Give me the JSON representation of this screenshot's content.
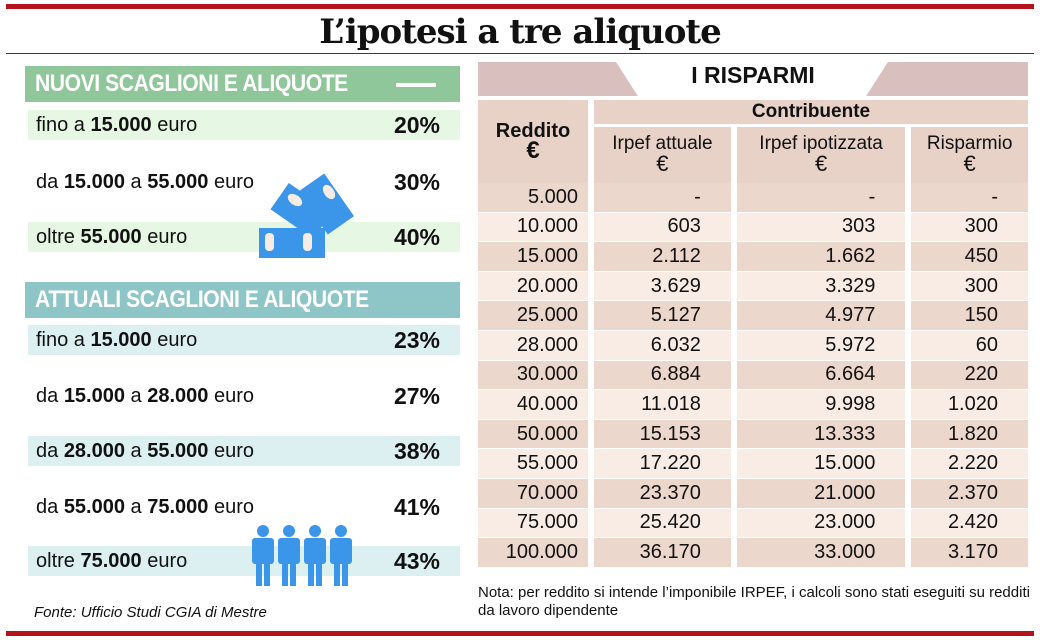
{
  "title": "L’ipotesi a tre aliquote",
  "new_brackets": {
    "heading": "NUOVI SCAGLIONI E ALIQUOTE",
    "rows": [
      {
        "pre": "fino a ",
        "a": "15.000",
        "mid": "",
        "b": "",
        "post": " euro",
        "pct": "20%"
      },
      {
        "pre": "da ",
        "a": "15.000",
        "mid": " a ",
        "b": "55.000",
        "post": " euro",
        "pct": "30%"
      },
      {
        "pre": "oltre ",
        "a": "55.000",
        "mid": "",
        "b": "",
        "post": " euro",
        "pct": "40%"
      }
    ]
  },
  "current_brackets": {
    "heading": "ATTUALI SCAGLIONI E ALIQUOTE",
    "rows": [
      {
        "pre": "fino a ",
        "a": "15.000",
        "mid": "",
        "b": "",
        "post": " euro",
        "pct": "23%"
      },
      {
        "pre": "da ",
        "a": "15.000",
        "mid": " a ",
        "b": "28.000",
        "post": " euro",
        "pct": "27%"
      },
      {
        "pre": "da ",
        "a": "28.000",
        "mid": " a ",
        "b": "55.000",
        "post": " euro",
        "pct": "38%"
      },
      {
        "pre": "da ",
        "a": "55.000",
        "mid": " a ",
        "b": "75.000",
        "post": " euro",
        "pct": "41%"
      },
      {
        "pre": "oltre ",
        "a": "75.000",
        "mid": "",
        "b": "",
        "post": " euro",
        "pct": "43%"
      }
    ]
  },
  "source": "Fonte: Ufficio Studi CGIA di Mestre",
  "chart_data": {
    "type": "table",
    "title": "I RISPARMI",
    "group_header": "Contribuente",
    "columns": [
      {
        "name": "Reddito",
        "unit": "€"
      },
      {
        "name": "Irpef attuale",
        "unit": "€"
      },
      {
        "name": "Irpef ipotizzata",
        "unit": "€"
      },
      {
        "name": "Risparmio",
        "unit": "€"
      }
    ],
    "rows": [
      [
        "5.000",
        "-",
        "-",
        "-"
      ],
      [
        "10.000",
        "603",
        "303",
        "300"
      ],
      [
        "15.000",
        "2.112",
        "1.662",
        "450"
      ],
      [
        "20.000",
        "3.629",
        "3.329",
        "300"
      ],
      [
        "25.000",
        "5.127",
        "4.977",
        "150"
      ],
      [
        "28.000",
        "6.032",
        "5.972",
        "60"
      ],
      [
        "30.000",
        "6.884",
        "6.664",
        "220"
      ],
      [
        "40.000",
        "11.018",
        "9.998",
        "1.020"
      ],
      [
        "50.000",
        "15.153",
        "13.333",
        "1.820"
      ],
      [
        "55.000",
        "17.220",
        "15.000",
        "2.220"
      ],
      [
        "70.000",
        "23.370",
        "21.000",
        "2.370"
      ],
      [
        "75.000",
        "25.420",
        "23.000",
        "2.420"
      ],
      [
        "100.000",
        "36.170",
        "33.000",
        "3.170"
      ]
    ]
  },
  "note": "Nota: per reddito si intende l’imponibile IRPEF, i calcoli sono stati eseguiti su redditi da lavoro dipendente",
  "colors": {
    "red": "#b5121b",
    "green_head": "#8fc79b",
    "green_row": "#e6f7e3",
    "teal_head": "#8ec5c6",
    "teal_row": "#ddf0f1",
    "icon_blue": "#3b95e8"
  }
}
